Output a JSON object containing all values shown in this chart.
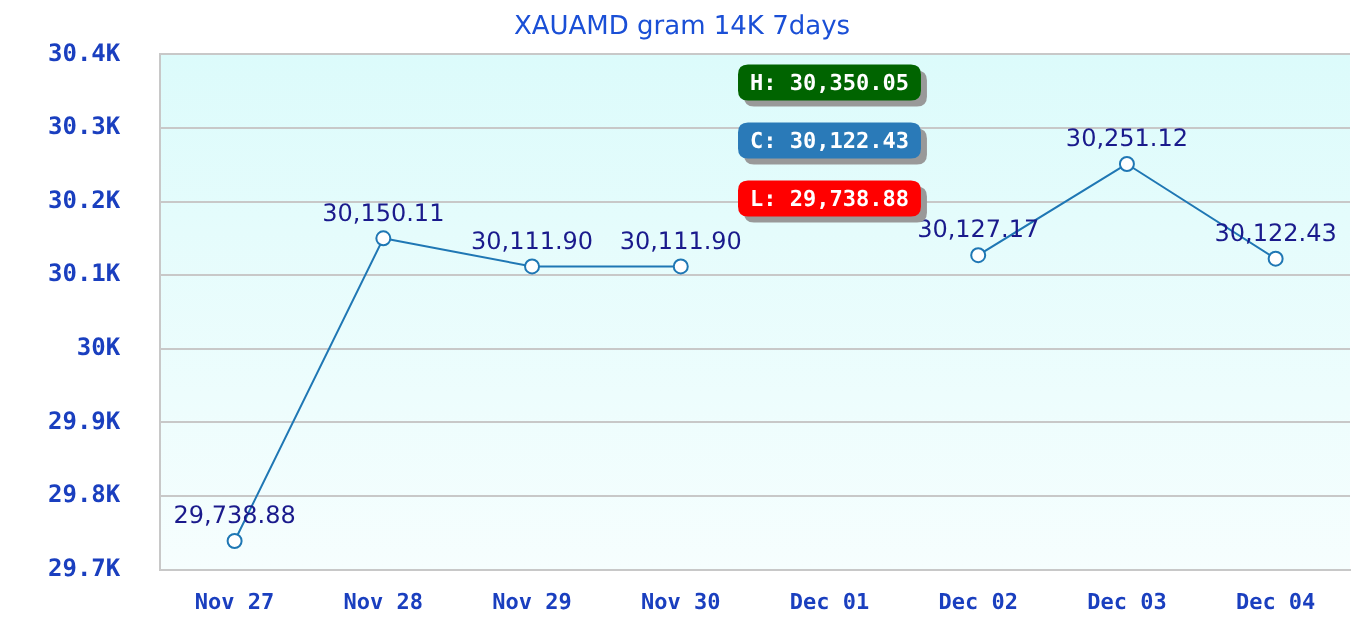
{
  "chart_data": {
    "type": "line",
    "title": "XAUAMD gram 14K 7days",
    "categories": [
      "Nov 27",
      "Nov 28",
      "Nov 29",
      "Nov 30",
      "Dec 01",
      "Dec 02",
      "Dec 03",
      "Dec 04"
    ],
    "series": [
      {
        "color": "#1f77b4",
        "values": [
          29738.88,
          30150.11,
          30111.9,
          30111.9,
          null,
          30127.17,
          30251.12,
          30122.43
        ],
        "value_labels": [
          "29,738.88",
          "30,150.11",
          "30,111.90",
          "30,111.90",
          null,
          "30,127.17",
          "30,251.12",
          "30,122.43"
        ]
      }
    ],
    "ylim": [
      29700,
      30400
    ],
    "yticks": [
      {
        "value": 29700,
        "label": "29.7K"
      },
      {
        "value": 29800,
        "label": "29.8K"
      },
      {
        "value": 29900,
        "label": "29.9K"
      },
      {
        "value": 30000,
        "label": "30K"
      },
      {
        "value": 30100,
        "label": "30.1K"
      },
      {
        "value": 30200,
        "label": "30.2K"
      },
      {
        "value": 30300,
        "label": "30.3K"
      },
      {
        "value": 30400,
        "label": "30.4K"
      }
    ],
    "grid": "y",
    "marker": "circle",
    "line_style": "solid",
    "legend": false,
    "annotations": [
      "H: 30,350.05",
      "C: 30,122.43",
      "L: 29,738.88"
    ]
  }
}
